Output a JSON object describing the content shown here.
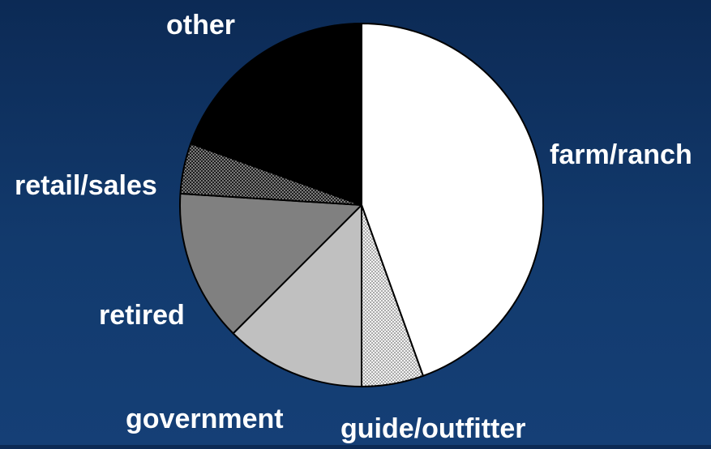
{
  "chart_data": {
    "type": "pie",
    "title": "",
    "slices": [
      {
        "label": "farm/ranch",
        "value": 44.5,
        "color": "#ffffff",
        "pattern": "none"
      },
      {
        "label": "guide/outfitter",
        "value": 5.5,
        "color": "#e8e8e8",
        "pattern": "dots-light"
      },
      {
        "label": "government",
        "value": 12.5,
        "color": "#c0c0c0",
        "pattern": "none"
      },
      {
        "label": "retired",
        "value": 13.5,
        "color": "#808080",
        "pattern": "none"
      },
      {
        "label": "retail/sales",
        "value": 4.5,
        "color": "#3a3a3a",
        "pattern": "dots-dark"
      },
      {
        "label": "other",
        "value": 19.5,
        "color": "#000000",
        "pattern": "none"
      }
    ],
    "start_angle_deg": 0,
    "direction": "clockwise",
    "legend": "none"
  }
}
